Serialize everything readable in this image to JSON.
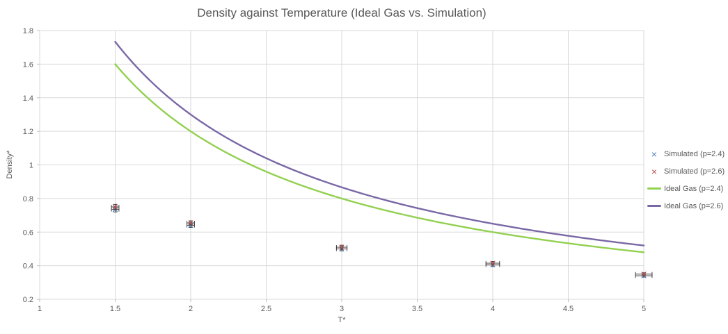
{
  "chart_data": {
    "type": "scatter",
    "title": "Density against Temperature (Ideal Gas vs. Simulation)",
    "xlabel": "T*",
    "ylabel": "Density*",
    "xlim": [
      1,
      5
    ],
    "ylim": [
      0.2,
      1.8
    ],
    "x_ticks": [
      1,
      1.5,
      2,
      2.5,
      3,
      3.5,
      4,
      4.5,
      5
    ],
    "y_ticks": [
      0.2,
      0.4,
      0.6,
      0.8,
      1,
      1.2,
      1.4,
      1.6,
      1.8
    ],
    "grid": true,
    "legend_position": "right",
    "colors": {
      "background": "#ffffff",
      "grid": "#d9d9d9",
      "axis_tick": "#bfbfbf",
      "text": "#595959",
      "error_bar": "#404040",
      "simulated_p24": "#4f81bd",
      "simulated_p26": "#c0504d",
      "ideal_p24": "#92d050",
      "ideal_p26": "#7a68a6"
    },
    "scatter_series": [
      {
        "name": "Simulated (p=2.4)",
        "marker": "x",
        "color": "#4f81bd",
        "x": [
          1.5,
          2,
          3,
          4,
          5
        ],
        "y": [
          0.735,
          0.64,
          0.5,
          0.405,
          0.34
        ],
        "y_err": [
          0.015,
          0.012,
          0.012,
          0.01,
          0.008
        ],
        "x_err": [
          0.025,
          0.025,
          0.035,
          0.045,
          0.055
        ]
      },
      {
        "name": "Simulated (p=2.6)",
        "marker": "x",
        "color": "#c0504d",
        "x": [
          1.5,
          2,
          3,
          4,
          5
        ],
        "y": [
          0.75,
          0.655,
          0.51,
          0.415,
          0.35
        ],
        "y_err": [
          0.015,
          0.012,
          0.012,
          0.01,
          0.008
        ],
        "x_err": [
          0.025,
          0.025,
          0.035,
          0.045,
          0.055
        ]
      }
    ],
    "line_series": [
      {
        "name": "Ideal Gas (p=2.4)",
        "color": "#92d050",
        "p": 2.4,
        "formula": "density = p / T",
        "x_range": [
          1.5,
          5
        ],
        "x_sample": [
          1.5,
          2,
          2.5,
          3,
          3.5,
          4,
          4.5,
          5
        ],
        "y_sample": [
          1.6,
          1.2,
          0.96,
          0.8,
          0.686,
          0.6,
          0.533,
          0.48
        ]
      },
      {
        "name": "Ideal Gas (p=2.6)",
        "color": "#7a68a6",
        "p": 2.6,
        "formula": "density = p / T",
        "x_range": [
          1.5,
          5
        ],
        "x_sample": [
          1.5,
          2,
          2.5,
          3,
          3.5,
          4,
          4.5,
          5
        ],
        "y_sample": [
          1.733,
          1.3,
          1.04,
          0.867,
          0.743,
          0.65,
          0.578,
          0.52
        ]
      }
    ],
    "legend": {
      "entries": [
        {
          "label": "Simulated (p=2.4)",
          "type": "marker",
          "color": "#4f81bd"
        },
        {
          "label": "Simulated (p=2.6)",
          "type": "marker",
          "color": "#c0504d"
        },
        {
          "label": "Ideal Gas (p=2.4)",
          "type": "line",
          "color": "#92d050"
        },
        {
          "label": "Ideal Gas (p=2.6)",
          "type": "line",
          "color": "#7a68a6"
        }
      ]
    }
  }
}
